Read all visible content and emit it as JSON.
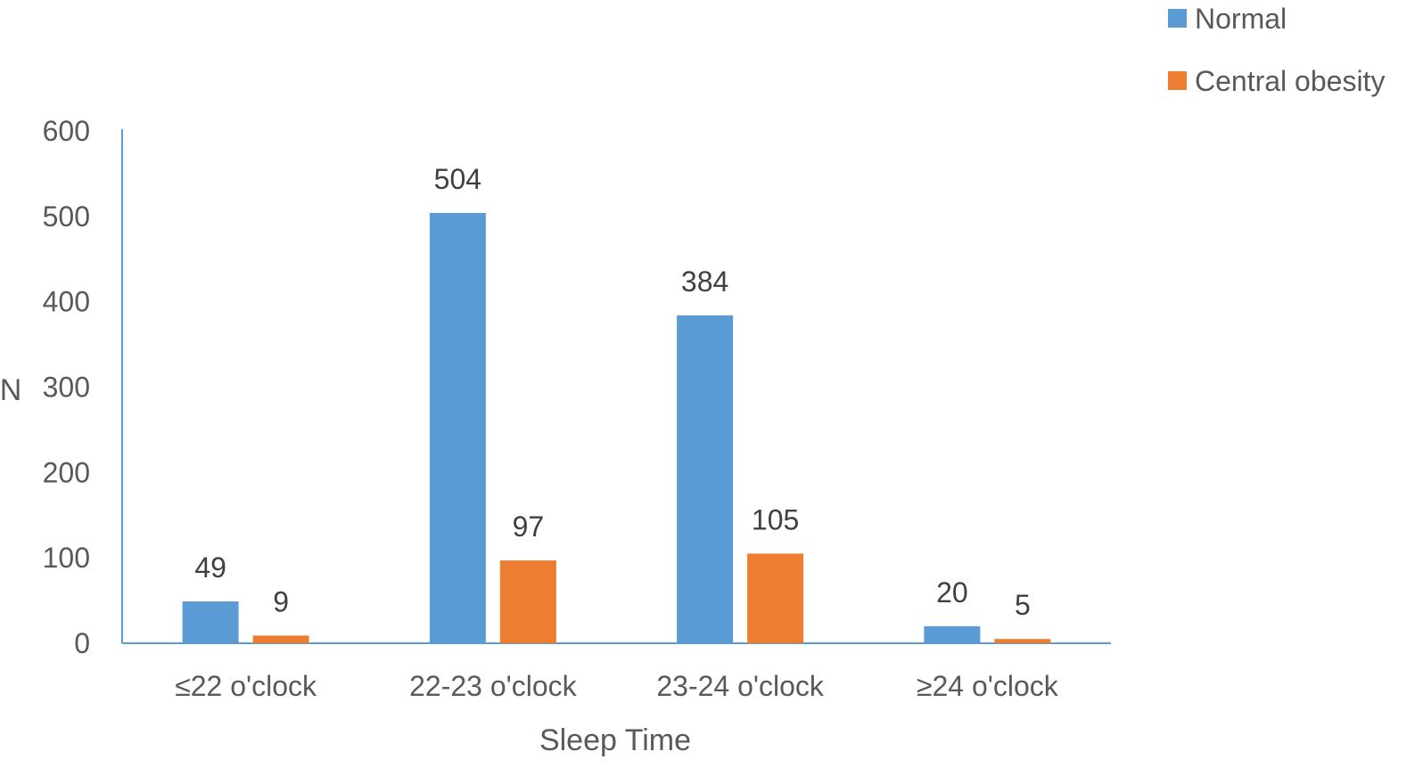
{
  "chart_data": {
    "type": "bar",
    "title": "",
    "xlabel": "Sleep Time",
    "ylabel": "N",
    "categories": [
      "≤22 o'clock",
      "22-23 o'clock",
      "23-24 o'clock",
      "≥24 o'clock"
    ],
    "series": [
      {
        "name": "Normal",
        "values": [
          49,
          504,
          384,
          20
        ],
        "color": "#5b9bd5"
      },
      {
        "name": "Central obesity",
        "values": [
          9,
          97,
          105,
          5
        ],
        "color": "#ed7d31"
      }
    ],
    "ylim": [
      0,
      600
    ],
    "yticks": [
      0,
      100,
      200,
      300,
      400,
      500,
      600
    ],
    "grid": false,
    "legend": "top-right",
    "axis_color": "#5b9bd5"
  }
}
